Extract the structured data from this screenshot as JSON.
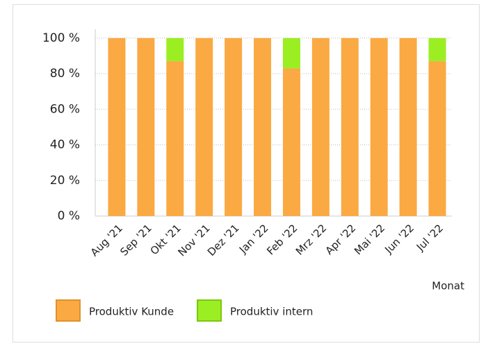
{
  "chart_data": {
    "type": "stacked_bar",
    "x_label": "Monat",
    "categories": [
      "Aug '21",
      "Sep '21",
      "Okt '21",
      "Nov '21",
      "Dez '21",
      "Jan '22",
      "Feb '22",
      "Mrz '22",
      "Apr '22",
      "Mai '22",
      "Jun '22",
      "Jul '22"
    ],
    "series": [
      {
        "name": "Produktiv Kunde",
        "color": "#fba943",
        "values": [
          100,
          100,
          87,
          100,
          100,
          100,
          83,
          100,
          100,
          100,
          100,
          87
        ]
      },
      {
        "name": "Produktiv intern",
        "color": "#9bee22",
        "values": [
          0,
          0,
          13,
          0,
          0,
          0,
          17,
          0,
          0,
          0,
          0,
          13
        ]
      }
    ],
    "ylim": [
      0,
      105
    ],
    "yticks": [
      {
        "value": 0,
        "label": "0 %"
      },
      {
        "value": 20,
        "label": "20 %"
      },
      {
        "value": 40,
        "label": "40 %"
      },
      {
        "value": 60,
        "label": "60 %"
      },
      {
        "value": 80,
        "label": "80 %"
      },
      {
        "value": 100,
        "label": "100 %"
      }
    ],
    "grid": true,
    "legend": "bottom-left"
  }
}
